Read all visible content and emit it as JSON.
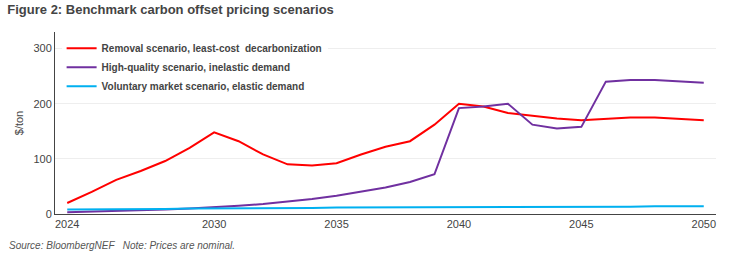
{
  "chart_data": {
    "type": "line",
    "title": "Figure 2: Benchmark carbon offset pricing scenarios",
    "y_label": "$/ton",
    "annotations": [
      "Source: BloombergNEF   Note: Prices are nominal."
    ],
    "x": [
      2024,
      2025,
      2026,
      2027,
      2028,
      2029,
      2030,
      2031,
      2032,
      2033,
      2034,
      2035,
      2036,
      2037,
      2038,
      2039,
      2040,
      2041,
      2042,
      2043,
      2044,
      2045,
      2046,
      2047,
      2048,
      2049,
      2050
    ],
    "series": [
      {
        "name": "Removal scenario, least-cost  decarbonization",
        "color": "#ff0000",
        "values": [
          20,
          40,
          62,
          78,
          96,
          120,
          148,
          132,
          108,
          90,
          88,
          92,
          108,
          122,
          132,
          162,
          200,
          195,
          183,
          178,
          173,
          170,
          173,
          175,
          175,
          172,
          170
        ]
      },
      {
        "name": "High-quality scenario, inelastic demand",
        "color": "#7030a0",
        "values": [
          3,
          4,
          5,
          6,
          8,
          10,
          12,
          15,
          18,
          22,
          27,
          33,
          40,
          48,
          58,
          72,
          192,
          195,
          200,
          162,
          155,
          158,
          240,
          243,
          243,
          240,
          238
        ]
      },
      {
        "name": "Voluntary market scenario, elastic demand",
        "color": "#00b0f0",
        "values": [
          8,
          8,
          9,
          9,
          9,
          10,
          10,
          10,
          11,
          11,
          11,
          12,
          12,
          12,
          12,
          13,
          13,
          13,
          13,
          13,
          13,
          13,
          13,
          13,
          14,
          14,
          14
        ]
      }
    ],
    "xlim": [
      2023.5,
      2050.5
    ],
    "xticks": [
      2024,
      2030,
      2035,
      2040,
      2045,
      2050
    ],
    "ylim": [
      0,
      330
    ],
    "yticks": [
      0,
      100,
      200,
      300
    ],
    "grid": "y",
    "legend": "upper left"
  }
}
